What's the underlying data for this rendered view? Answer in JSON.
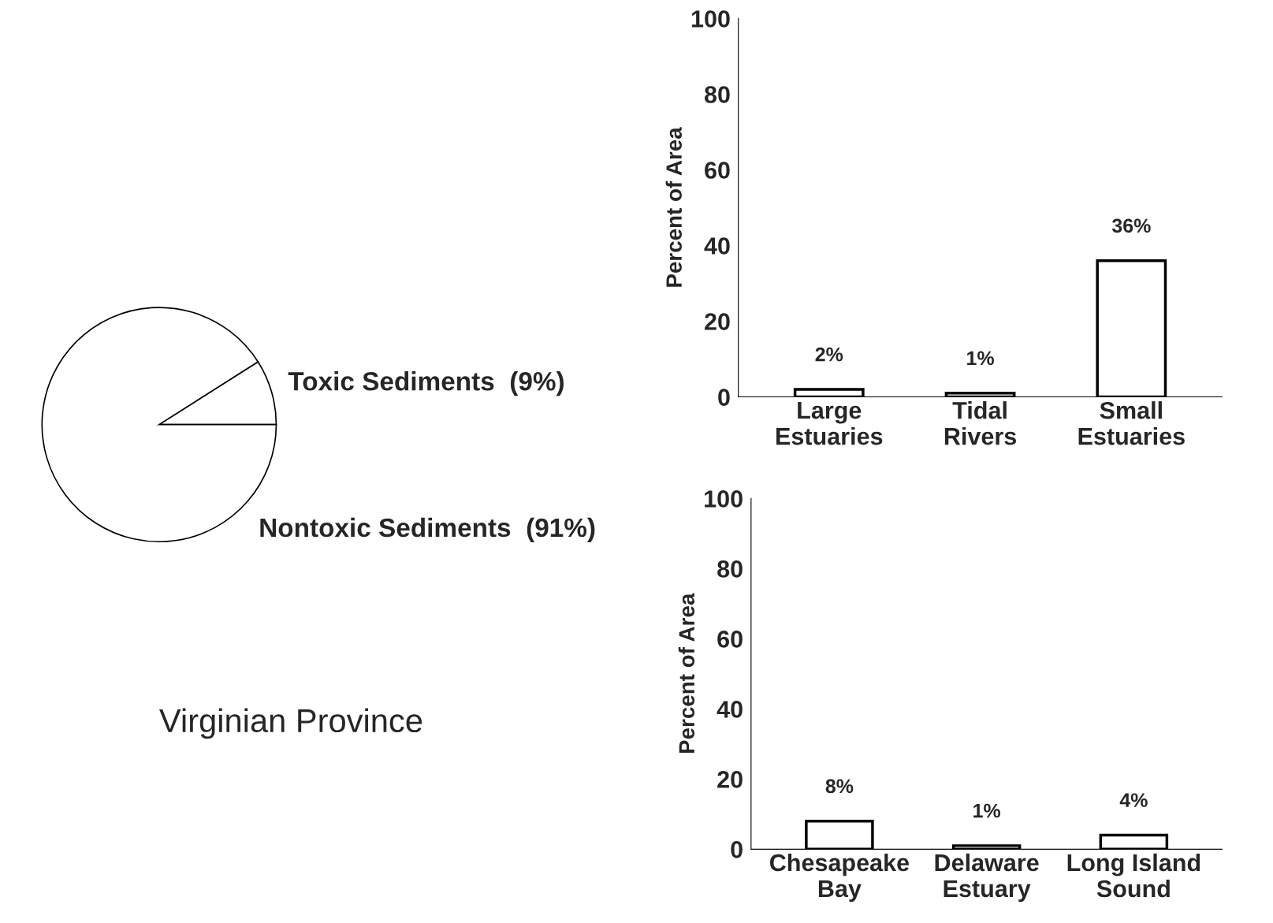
{
  "chart_data": [
    {
      "type": "pie",
      "title": "Virginian Province",
      "categories": [
        "Toxic Sediments  (9%)",
        "Nontoxic Sediments  (91%)"
      ],
      "values": [
        9,
        91
      ],
      "colors": [
        "#ffffff",
        "#ffffff"
      ]
    },
    {
      "type": "bar",
      "ylabel": "Percent of Area",
      "categories": [
        "Large\nEstuaries",
        "Tidal\nRivers",
        "Small\nEstuaries"
      ],
      "values": [
        2,
        1,
        36
      ],
      "value_labels": [
        "2%",
        "1%",
        "36%"
      ],
      "color": "#ffffff",
      "ylim": [
        0,
        100
      ],
      "yticks": [
        0,
        20,
        40,
        60,
        80,
        100
      ],
      "grid": false
    },
    {
      "type": "bar",
      "ylabel": "Percent of Area",
      "categories": [
        "Chesapeake\nBay",
        "Delaware\nEstuary",
        "Long Island\nSound"
      ],
      "values": [
        8,
        1,
        4
      ],
      "value_labels": [
        "8%",
        "1%",
        "4%"
      ],
      "color": "#ffffff",
      "ylim": [
        0,
        100
      ],
      "yticks": [
        0,
        20,
        40,
        60,
        80,
        100
      ],
      "grid": false
    }
  ]
}
